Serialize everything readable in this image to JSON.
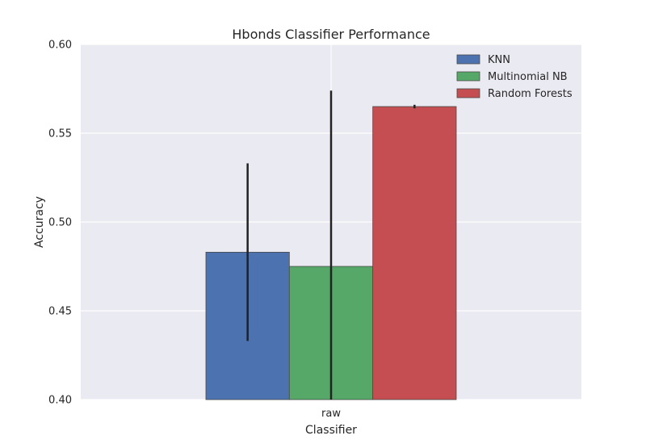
{
  "chart_data": {
    "type": "bar",
    "title": "Hbonds Classifier Performance",
    "xlabel": "Classifier",
    "ylabel": "Accuracy",
    "categories": [
      "raw"
    ],
    "ylim": [
      0.4,
      0.6
    ],
    "yticks": [
      0.4,
      0.45,
      0.5,
      0.55,
      0.6
    ],
    "ytick_labels": [
      "0.40",
      "0.45",
      "0.50",
      "0.55",
      "0.60"
    ],
    "grid": true,
    "legend_position": "top-right",
    "series": [
      {
        "name": "KNN",
        "values": [
          0.483
        ],
        "error": [
          0.05
        ],
        "color": "#4c72b0"
      },
      {
        "name": "Multinomial NB",
        "values": [
          0.475
        ],
        "error": [
          0.099
        ],
        "color": "#55a868"
      },
      {
        "name": "Random Forests",
        "values": [
          0.565
        ],
        "error": [
          0.001
        ],
        "color": "#c44e52"
      }
    ]
  },
  "style": {
    "plot_background": "#eaeaf2",
    "grid_color": "#ffffff",
    "error_bar_color": "#222222"
  }
}
